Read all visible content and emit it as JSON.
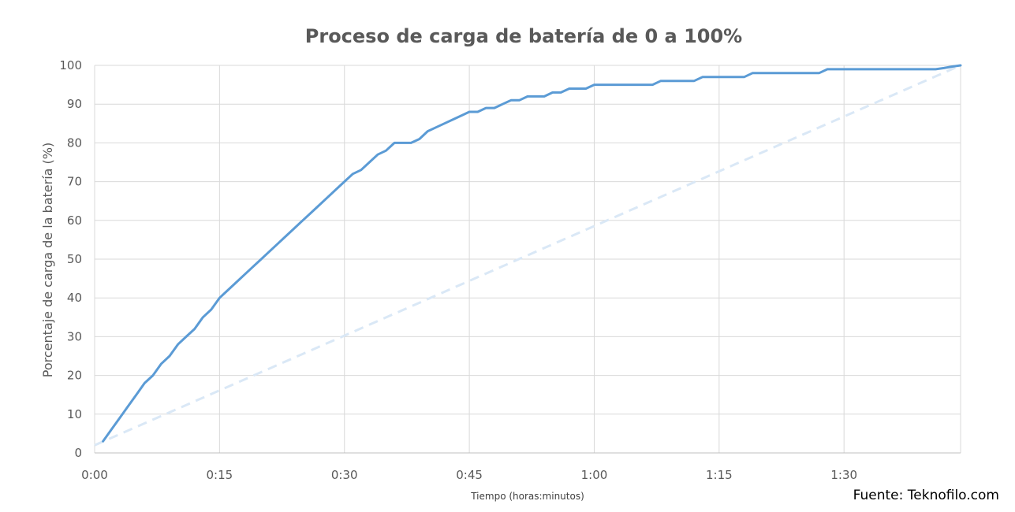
{
  "chart_data": {
    "type": "line",
    "title": "Proceso de carga de batería de 0 a 100%",
    "xlabel": "Tiempo (horas:minutos)",
    "ylabel": "Porcentaje de carga de la batería (%)",
    "x_unit": "minutes",
    "xlim": [
      0,
      104
    ],
    "ylim": [
      0,
      100
    ],
    "x_ticks": [
      {
        "value": 0,
        "label": "0:00"
      },
      {
        "value": 15,
        "label": "0:15"
      },
      {
        "value": 30,
        "label": "0:30"
      },
      {
        "value": 45,
        "label": "0:45"
      },
      {
        "value": 60,
        "label": "1:00"
      },
      {
        "value": 75,
        "label": "1:15"
      },
      {
        "value": 90,
        "label": "1:30"
      }
    ],
    "y_ticks": [
      "0",
      "10",
      "20",
      "30",
      "40",
      "50",
      "60",
      "70",
      "80",
      "90",
      "100"
    ],
    "grid": true,
    "series": [
      {
        "style": "solid",
        "color": "#5b9bd5",
        "points": [
          [
            1,
            3
          ],
          [
            2,
            6
          ],
          [
            3,
            9
          ],
          [
            4,
            12
          ],
          [
            5,
            15
          ],
          [
            6,
            18
          ],
          [
            7,
            20
          ],
          [
            8,
            23
          ],
          [
            9,
            25
          ],
          [
            10,
            28
          ],
          [
            11,
            30
          ],
          [
            12,
            32
          ],
          [
            13,
            35
          ],
          [
            14,
            37
          ],
          [
            15,
            40
          ],
          [
            16,
            42
          ],
          [
            17,
            44
          ],
          [
            18,
            46
          ],
          [
            19,
            48
          ],
          [
            20,
            50
          ],
          [
            21,
            52
          ],
          [
            22,
            54
          ],
          [
            23,
            56
          ],
          [
            24,
            58
          ],
          [
            25,
            60
          ],
          [
            26,
            62
          ],
          [
            27,
            64
          ],
          [
            28,
            66
          ],
          [
            29,
            68
          ],
          [
            30,
            70
          ],
          [
            31,
            72
          ],
          [
            32,
            73
          ],
          [
            33,
            75
          ],
          [
            34,
            77
          ],
          [
            35,
            78
          ],
          [
            36,
            80
          ],
          [
            37,
            80
          ],
          [
            38,
            80
          ],
          [
            39,
            81
          ],
          [
            40,
            83
          ],
          [
            41,
            84
          ],
          [
            42,
            85
          ],
          [
            43,
            86
          ],
          [
            44,
            87
          ],
          [
            45,
            88
          ],
          [
            46,
            88
          ],
          [
            47,
            89
          ],
          [
            48,
            89
          ],
          [
            49,
            90
          ],
          [
            50,
            91
          ],
          [
            51,
            91
          ],
          [
            52,
            92
          ],
          [
            53,
            92
          ],
          [
            54,
            92
          ],
          [
            55,
            93
          ],
          [
            56,
            93
          ],
          [
            57,
            94
          ],
          [
            58,
            94
          ],
          [
            59,
            94
          ],
          [
            60,
            95
          ],
          [
            61,
            95
          ],
          [
            62,
            95
          ],
          [
            63,
            95
          ],
          [
            64,
            95
          ],
          [
            65,
            95
          ],
          [
            66,
            95
          ],
          [
            67,
            95
          ],
          [
            68,
            96
          ],
          [
            69,
            96
          ],
          [
            70,
            96
          ],
          [
            71,
            96
          ],
          [
            72,
            96
          ],
          [
            73,
            97
          ],
          [
            74,
            97
          ],
          [
            75,
            97
          ],
          [
            76,
            97
          ],
          [
            77,
            97
          ],
          [
            78,
            97
          ],
          [
            79,
            98
          ],
          [
            80,
            98
          ],
          [
            81,
            98
          ],
          [
            82,
            98
          ],
          [
            83,
            98
          ],
          [
            84,
            98
          ],
          [
            85,
            98
          ],
          [
            86,
            98
          ],
          [
            87,
            98
          ],
          [
            88,
            99
          ],
          [
            89,
            99
          ],
          [
            90,
            99
          ],
          [
            91,
            99
          ],
          [
            92,
            99
          ],
          [
            93,
            99
          ],
          [
            94,
            99
          ],
          [
            95,
            99
          ],
          [
            96,
            99
          ],
          [
            97,
            99
          ],
          [
            98,
            99
          ],
          [
            99,
            99
          ],
          [
            100,
            99
          ],
          [
            101,
            99
          ],
          [
            102,
            99.3
          ],
          [
            103,
            99.7
          ],
          [
            104,
            100
          ]
        ]
      },
      {
        "style": "dashed",
        "color": "#dae8f6",
        "points": [
          [
            0,
            2
          ],
          [
            104,
            100
          ]
        ]
      }
    ]
  },
  "source_text": "Fuente: Teknofilo.com"
}
